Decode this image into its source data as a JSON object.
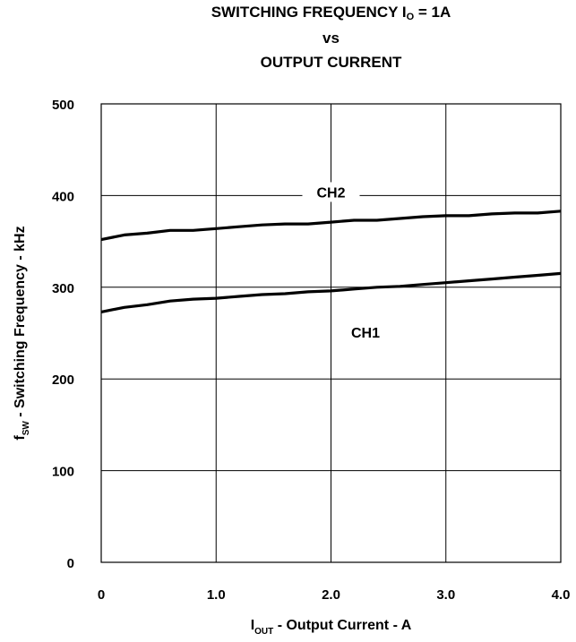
{
  "chart_data": {
    "type": "line",
    "title_parts": {
      "line1_main": "SWITCHING FREQUENCY I",
      "line1_sub": "O",
      "line1_rest": " = 1A",
      "line2": "vs",
      "line3": "OUTPUT CURRENT"
    },
    "xlabel_parts": {
      "main": "I",
      "sub": "OUT",
      "rest": " - Output Current - A"
    },
    "ylabel_parts": {
      "main": "f",
      "sub": "SW",
      "rest": " - Switching Frequency - kHz"
    },
    "xlim": [
      0,
      4.0
    ],
    "ylim": [
      0,
      500
    ],
    "xticks": [
      0,
      1,
      2,
      3,
      4
    ],
    "xtick_labels": [
      "0",
      "1.0",
      "2.0",
      "3.0",
      "4.0"
    ],
    "yticks": [
      0,
      100,
      200,
      300,
      400,
      500
    ],
    "ytick_labels": [
      "0",
      "100",
      "200",
      "300",
      "400",
      "500"
    ],
    "grid": true,
    "series": [
      {
        "name": "CH2",
        "x": [
          0,
          0.2,
          0.4,
          0.6,
          0.8,
          1.0,
          1.2,
          1.4,
          1.6,
          1.8,
          2.0,
          2.2,
          2.4,
          2.6,
          2.8,
          3.0,
          3.2,
          3.4,
          3.6,
          3.8,
          4.0
        ],
        "values": [
          352,
          357,
          359,
          362,
          362,
          364,
          366,
          368,
          369,
          369,
          371,
          373,
          373,
          375,
          377,
          378,
          378,
          380,
          381,
          381,
          383
        ]
      },
      {
        "name": "CH1",
        "x": [
          0,
          0.2,
          0.4,
          0.6,
          0.8,
          1.0,
          1.2,
          1.4,
          1.6,
          1.8,
          2.0,
          2.2,
          2.4,
          2.6,
          2.8,
          3.0,
          3.2,
          3.4,
          3.6,
          3.8,
          4.0
        ],
        "values": [
          273,
          278,
          281,
          285,
          287,
          288,
          290,
          292,
          293,
          295,
          296,
          298,
          300,
          301,
          303,
          305,
          307,
          309,
          311,
          313,
          315
        ]
      }
    ],
    "annotations": [
      {
        "text": "CH2",
        "x": 2.0,
        "y": 398
      },
      {
        "text": "CH1",
        "x": 2.3,
        "y": 245
      }
    ],
    "line_color": "#000000",
    "grid_color": "#000000"
  }
}
